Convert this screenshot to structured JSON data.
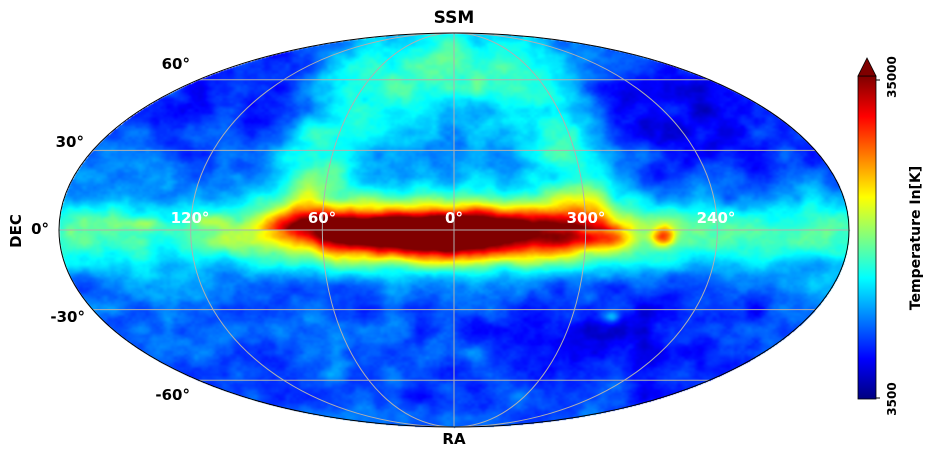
{
  "chart_data": {
    "type": "heatmap",
    "projection": "mollweide",
    "title": "SSM",
    "xlabel": "RA",
    "ylabel": "DEC",
    "dec_ticks": [
      "60°",
      "30°",
      "0°",
      "-30°",
      "-60°"
    ],
    "ra_ticks": [
      "120°",
      "60°",
      "0°",
      "300°",
      "240°"
    ],
    "colorbar": {
      "label": "Temperature In[K]",
      "min": 3500,
      "max": 35000,
      "min_label": "3500",
      "max_label": "35000",
      "colormap": "jet",
      "extend": "max"
    },
    "grid": true
  },
  "colors": {
    "grid": "#b0b0b0",
    "background": "#ffffff"
  }
}
